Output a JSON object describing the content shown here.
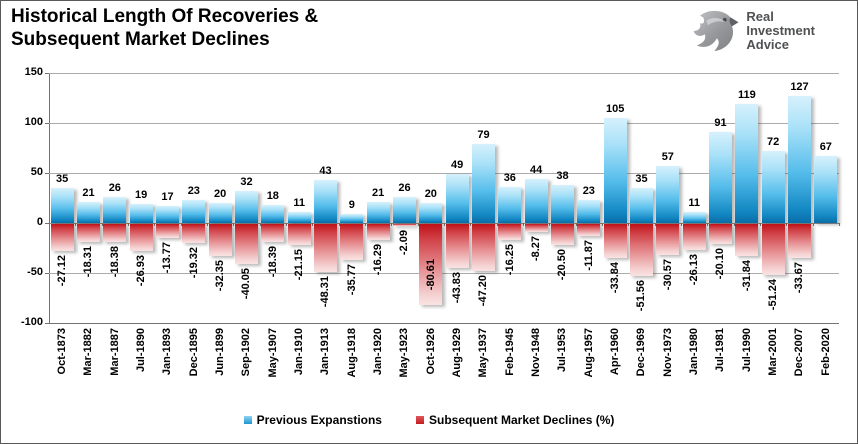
{
  "header": {
    "title": "Historical Length Of Recoveries &\nSubsequent Market Declines",
    "logo": {
      "icon": "eagle-icon",
      "line1": "Real",
      "line2": "Investment",
      "line3": "Advice"
    }
  },
  "chart_data": {
    "type": "bar",
    "title": "Historical Length Of Recoveries & Subsequent Market Declines",
    "categories": [
      "Oct-1873",
      "Mar-1882",
      "Mar-1887",
      "Jul-1890",
      "Jan-1893",
      "Dec-1895",
      "Jun-1899",
      "Sep-1902",
      "May-1907",
      "Jan-1910",
      "Jan-1913",
      "Aug-1918",
      "Jan-1920",
      "May-1923",
      "Oct-1926",
      "Aug-1929",
      "May-1937",
      "Feb-1945",
      "Nov-1948",
      "Jul-1953",
      "Aug-1957",
      "Apr-1960",
      "Dec-1969",
      "Nov-1973",
      "Jan-1980",
      "Jul-1981",
      "Jul-1990",
      "Mar-2001",
      "Dec-2007",
      "Feb-2020"
    ],
    "series": [
      {
        "name": "Previous Expanstions",
        "color": "#2ba3d9",
        "values": [
          35,
          21,
          26,
          19,
          17,
          23,
          20,
          32,
          18,
          11,
          43,
          9,
          21,
          26,
          20,
          49,
          79,
          36,
          44,
          38,
          23,
          105,
          35,
          57,
          11,
          91,
          119,
          72,
          127,
          67
        ]
      },
      {
        "name": "Subsequent Market Declines (%)",
        "color": "#cc1f24",
        "values": [
          -27.12,
          -18.31,
          -18.38,
          -26.93,
          -13.77,
          -19.32,
          -32.35,
          -40.05,
          -18.39,
          -21.15,
          -48.31,
          -35.77,
          -16.29,
          -2.09,
          -80.61,
          -43.83,
          -47.2,
          -16.25,
          -8.27,
          -20.5,
          -11.87,
          -33.84,
          -51.56,
          -30.57,
          -26.13,
          -20.1,
          -31.84,
          -51.24,
          -33.67,
          null
        ],
        "value_labels": [
          "-27.12",
          "-18.31",
          "-18.38",
          "-26.93",
          "-13.77",
          "-19.32",
          "-32.35",
          "-40.05",
          "-18.39",
          "-21.15",
          "-48.31",
          "-35.77",
          "-16.29",
          "-2.09",
          "-80.61",
          "-43.83",
          "-47.20",
          "-16.25",
          "-8.27",
          "-20.50",
          "-11.87",
          "-33.84",
          "-51.56",
          "-30.57",
          "-26.13",
          "-20.10",
          "-31.84",
          "-51.24",
          "-33.67",
          null
        ]
      }
    ],
    "ylim": [
      -100,
      150
    ],
    "yticks": [
      150,
      100,
      50,
      0,
      -50,
      -100
    ],
    "grid": true,
    "legend_position": "bottom",
    "xlabel": "",
    "ylabel": ""
  }
}
